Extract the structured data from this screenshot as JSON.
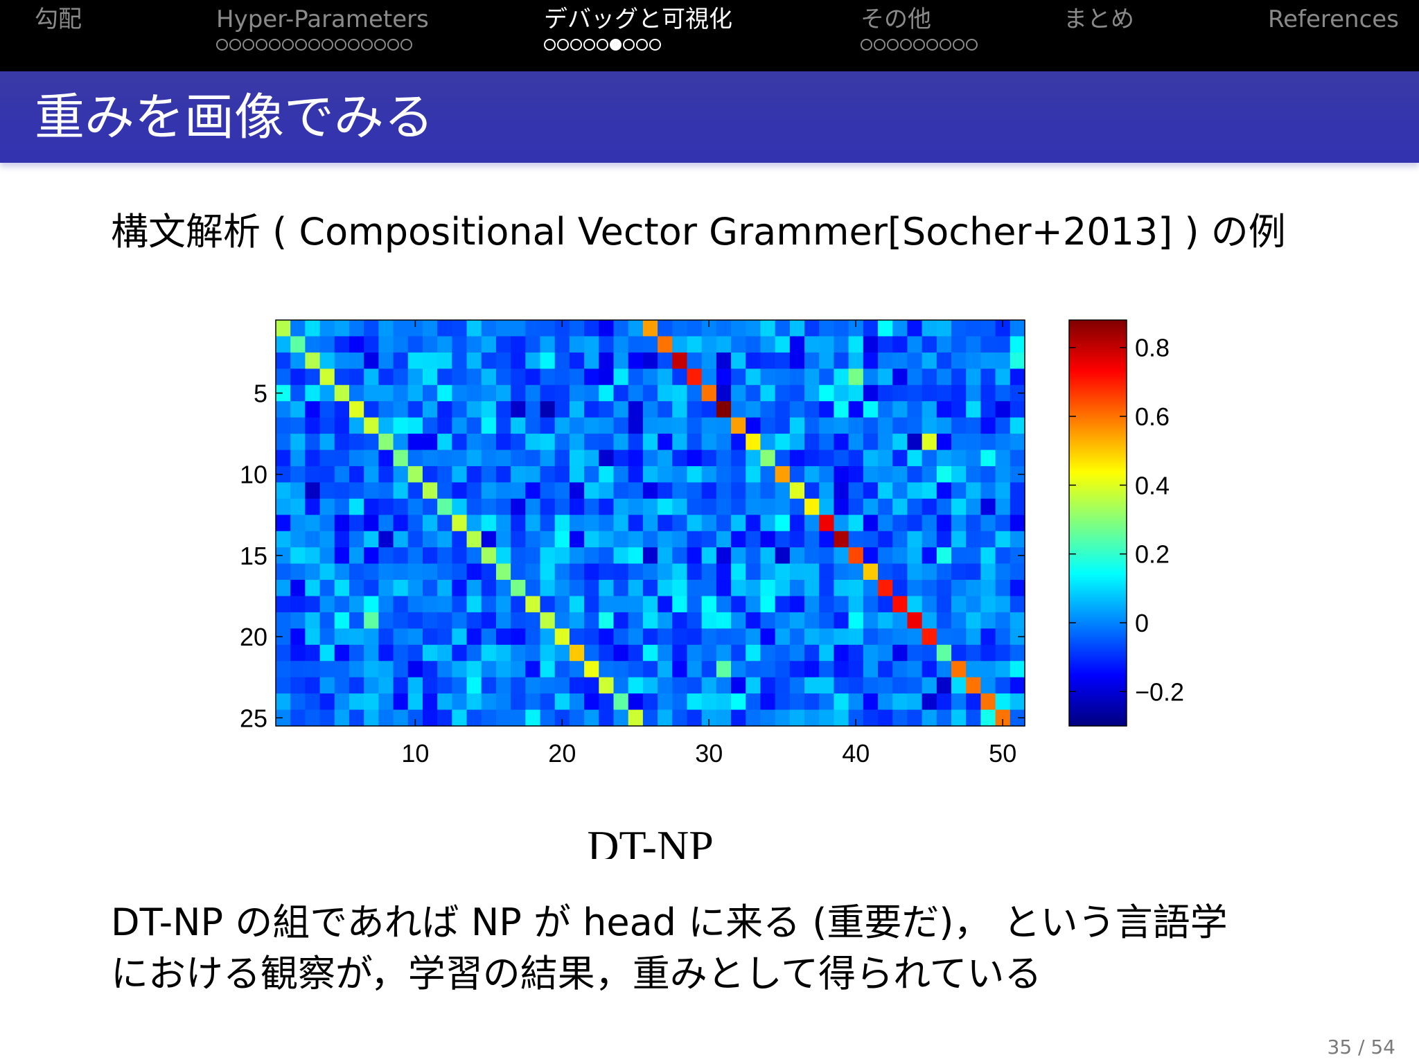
{
  "nav": {
    "sections": [
      {
        "title": "勾配",
        "dots": 0,
        "filled": -1,
        "active": false
      },
      {
        "title": "Hyper-Parameters",
        "dots": 15,
        "filled": -1,
        "active": false
      },
      {
        "title": "デバッグと可視化",
        "dots": 9,
        "filled": 5,
        "active": true
      },
      {
        "title": "その他",
        "dots": 9,
        "filled": -1,
        "active": false
      },
      {
        "title": "まとめ",
        "dots": 0,
        "filled": -1,
        "active": false
      },
      {
        "title": "References",
        "dots": 0,
        "filled": -1,
        "active": false
      }
    ]
  },
  "slide": {
    "title": "重みを画像でみる",
    "subtitle": "構文解析 ( Compositional Vector Grammer[Socher+2013] ) の例",
    "caption_line1": "DT-NP の組であれば NP が head に来る (重要だ)， という言語学",
    "caption_line2": "における観察が，学習の結果，重みとして得られている",
    "page": "35 / 54"
  },
  "chart_data": {
    "type": "heatmap",
    "title": "",
    "xlabel": "DT-NP",
    "ylabel": "",
    "rows": 25,
    "cols": 51,
    "xlim": [
      0.5,
      51.5
    ],
    "ylim": [
      0.5,
      25.5
    ],
    "x_ticks": [
      10,
      20,
      30,
      40,
      50
    ],
    "y_ticks": [
      5,
      10,
      15,
      20,
      25
    ],
    "colorbar": {
      "ticks": [
        "-0.2",
        "0",
        "0.2",
        "0.4",
        "0.6",
        "0.8"
      ],
      "tick_values": [
        -0.2,
        0,
        0.2,
        0.4,
        0.6,
        0.8
      ],
      "min": -0.3,
      "max": 0.88,
      "colormap": "jet"
    },
    "diagonal_left": [
      0.35,
      0.25,
      0.35,
      0.38,
      0.36,
      0.4,
      0.38,
      0.3,
      0.28,
      0.33,
      0.35,
      0.25,
      0.38,
      0.35,
      0.33,
      0.3,
      0.28,
      0.38,
      0.36,
      0.4,
      0.5,
      0.42,
      0.38,
      0.25,
      0.38
    ],
    "diagonal_right": [
      0.55,
      0.6,
      0.8,
      0.7,
      0.6,
      0.88,
      0.55,
      0.45,
      0.3,
      0.55,
      0.4,
      0.45,
      0.75,
      0.83,
      0.65,
      0.5,
      0.7,
      0.72,
      0.75,
      0.7,
      0.25,
      0.6,
      0.6,
      0.6,
      0.6
    ],
    "background_range": [
      -0.25,
      0.2
    ],
    "highlights": [
      {
        "row": 8,
        "col": 45,
        "value": 0.4
      },
      {
        "row": 4,
        "col": 40,
        "value": 0.28
      },
      {
        "row": 19,
        "col": 7,
        "value": 0.25
      },
      {
        "row": 22,
        "col": 31,
        "value": 0.25
      }
    ]
  }
}
